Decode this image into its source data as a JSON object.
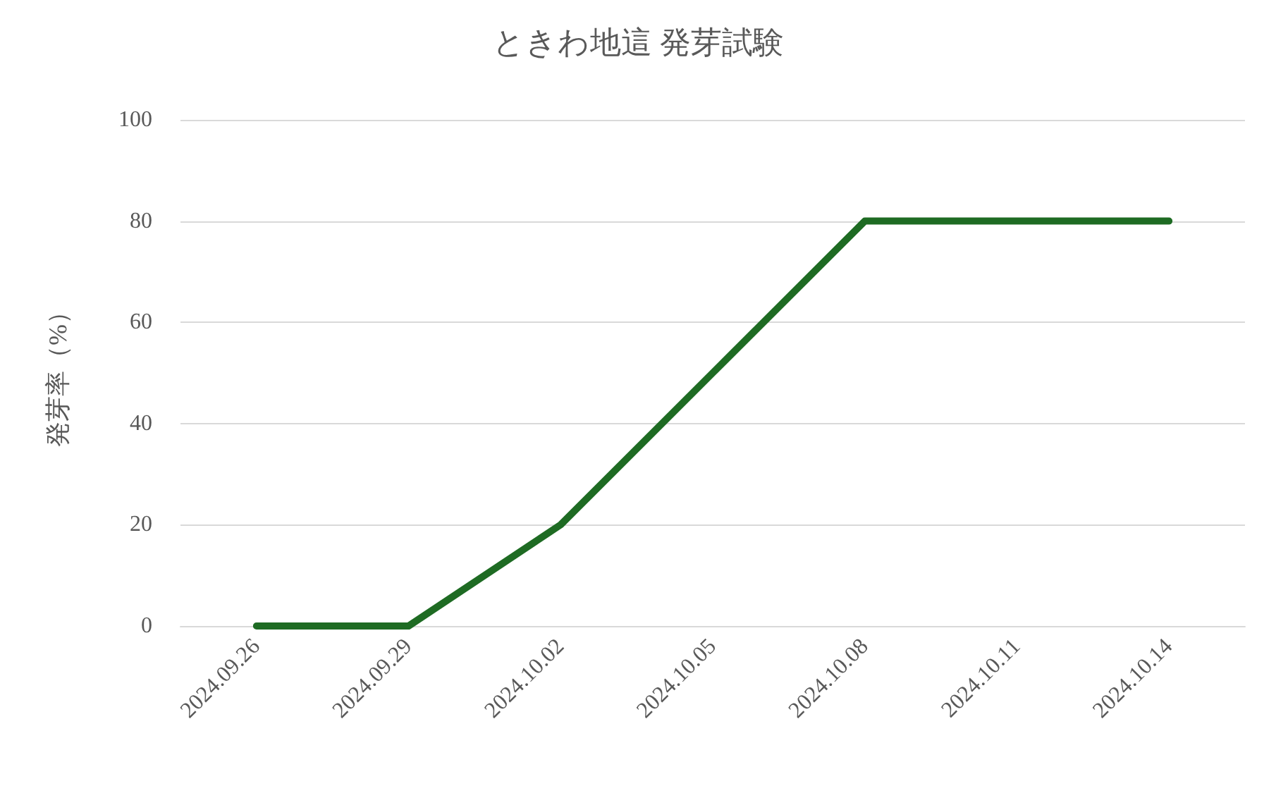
{
  "chart_data": {
    "type": "line",
    "title": "ときわ地這 発芽試験",
    "ylabel": "発芽率（%）",
    "x": [
      "2024-09-26",
      "2024-09-29",
      "2024-10-02",
      "2024-10-08",
      "2024-10-14"
    ],
    "series": [
      {
        "color": "#1e6b23",
        "values": [
          0,
          0,
          20,
          80,
          80
        ]
      }
    ],
    "xlim": [
      "2024-09-24T12:00",
      "2024-10-15T12:00"
    ],
    "xticks": [
      {
        "value": "2024-09-26",
        "label": "2024.09.26"
      },
      {
        "value": "2024-09-29",
        "label": "2024.09.29"
      },
      {
        "value": "2024-10-02",
        "label": "2024.10.02"
      },
      {
        "value": "2024-10-05",
        "label": "2024.10.05"
      },
      {
        "value": "2024-10-08",
        "label": "2024.10.08"
      },
      {
        "value": "2024-10-11",
        "label": "2024.10.11"
      },
      {
        "value": "2024-10-14",
        "label": "2024.10.14"
      }
    ],
    "ylim": [
      0,
      100
    ],
    "yticks": [
      0,
      20,
      40,
      60,
      80,
      100
    ],
    "grid": "y",
    "marker": "none",
    "line_style": "solid"
  }
}
